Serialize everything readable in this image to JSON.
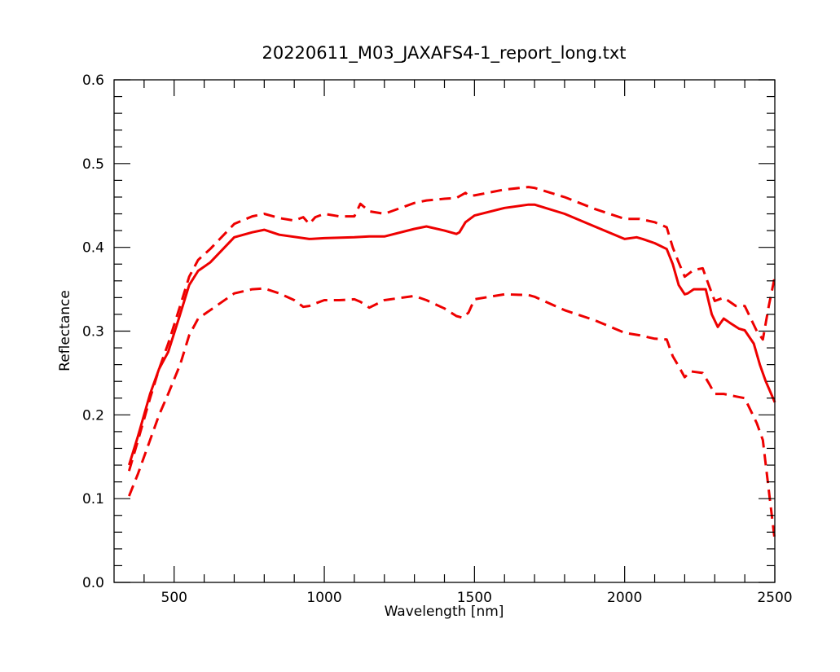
{
  "chart_data": {
    "type": "line",
    "title": "20220611_M03_JAXAFS4-1_report_long.txt",
    "xlabel": "Wavelength [nm]",
    "ylabel": "Reflectance",
    "xlim": [
      300,
      2500
    ],
    "ylim": [
      0.0,
      0.6
    ],
    "x_ticks": [
      500,
      1000,
      1500,
      2000,
      2500
    ],
    "x_tick_labels": [
      "500",
      "1000",
      "1500",
      "2000",
      "2500"
    ],
    "y_ticks": [
      0.0,
      0.1,
      0.2,
      0.3,
      0.4,
      0.5,
      0.6
    ],
    "y_tick_labels": [
      "0.0",
      "0.1",
      "0.2",
      "0.3",
      "0.4",
      "0.5",
      "0.6"
    ],
    "grid": false,
    "legend": "none",
    "color": "#ee0000",
    "series": [
      {
        "style": "solid",
        "x": [
          350,
          380,
          420,
          450,
          480,
          520,
          550,
          580,
          620,
          700,
          760,
          800,
          850,
          950,
          1000,
          1100,
          1150,
          1200,
          1300,
          1340,
          1400,
          1440,
          1450,
          1470,
          1500,
          1600,
          1680,
          1700,
          1800,
          1900,
          2000,
          2040,
          2060,
          2100,
          2140,
          2160,
          2180,
          2200,
          2210,
          2230,
          2270,
          2290,
          2310,
          2320,
          2330,
          2350,
          2380,
          2400,
          2430,
          2450,
          2470,
          2500
        ],
        "y": [
          0.14,
          0.175,
          0.225,
          0.255,
          0.275,
          0.32,
          0.355,
          0.372,
          0.382,
          0.412,
          0.418,
          0.421,
          0.415,
          0.41,
          0.411,
          0.412,
          0.413,
          0.413,
          0.422,
          0.425,
          0.42,
          0.416,
          0.418,
          0.43,
          0.438,
          0.447,
          0.451,
          0.451,
          0.44,
          0.425,
          0.41,
          0.412,
          0.41,
          0.405,
          0.398,
          0.38,
          0.355,
          0.344,
          0.345,
          0.35,
          0.35,
          0.32,
          0.305,
          0.31,
          0.315,
          0.31,
          0.303,
          0.301,
          0.285,
          0.26,
          0.24,
          0.215
        ]
      },
      {
        "style": "dashed",
        "x": [
          350,
          380,
          420,
          450,
          480,
          520,
          550,
          580,
          620,
          700,
          760,
          800,
          850,
          900,
          930,
          950,
          970,
          1000,
          1050,
          1100,
          1120,
          1150,
          1200,
          1300,
          1340,
          1400,
          1440,
          1470,
          1480,
          1500,
          1600,
          1680,
          1700,
          1800,
          1900,
          2000,
          2050,
          2100,
          2140,
          2160,
          2180,
          2200,
          2230,
          2260,
          2280,
          2300,
          2330,
          2370,
          2400,
          2420,
          2440,
          2460,
          2480,
          2500
        ],
        "y": [
          0.133,
          0.17,
          0.22,
          0.255,
          0.285,
          0.33,
          0.365,
          0.385,
          0.398,
          0.428,
          0.437,
          0.44,
          0.435,
          0.432,
          0.436,
          0.428,
          0.436,
          0.44,
          0.437,
          0.437,
          0.452,
          0.443,
          0.44,
          0.453,
          0.456,
          0.458,
          0.459,
          0.465,
          0.462,
          0.462,
          0.469,
          0.472,
          0.471,
          0.46,
          0.446,
          0.434,
          0.434,
          0.43,
          0.424,
          0.4,
          0.382,
          0.365,
          0.373,
          0.375,
          0.355,
          0.336,
          0.34,
          0.33,
          0.33,
          0.315,
          0.3,
          0.29,
          0.33,
          0.365
        ]
      },
      {
        "style": "dashed",
        "x": [
          350,
          380,
          420,
          450,
          480,
          520,
          550,
          580,
          620,
          700,
          760,
          800,
          850,
          900,
          930,
          950,
          970,
          1000,
          1050,
          1100,
          1120,
          1150,
          1200,
          1300,
          1340,
          1400,
          1440,
          1460,
          1480,
          1500,
          1600,
          1680,
          1700,
          1800,
          1900,
          2000,
          2050,
          2100,
          2140,
          2160,
          2180,
          2200,
          2220,
          2260,
          2280,
          2300,
          2330,
          2370,
          2400,
          2420,
          2440,
          2460,
          2480,
          2500
        ],
        "y": [
          0.103,
          0.13,
          0.17,
          0.2,
          0.225,
          0.26,
          0.295,
          0.315,
          0.325,
          0.345,
          0.35,
          0.351,
          0.345,
          0.337,
          0.329,
          0.33,
          0.333,
          0.337,
          0.337,
          0.338,
          0.335,
          0.328,
          0.337,
          0.342,
          0.337,
          0.327,
          0.318,
          0.316,
          0.322,
          0.338,
          0.344,
          0.343,
          0.341,
          0.325,
          0.313,
          0.298,
          0.295,
          0.291,
          0.29,
          0.27,
          0.258,
          0.245,
          0.252,
          0.25,
          0.238,
          0.225,
          0.225,
          0.222,
          0.22,
          0.205,
          0.19,
          0.17,
          0.11,
          0.05
        ]
      }
    ]
  }
}
